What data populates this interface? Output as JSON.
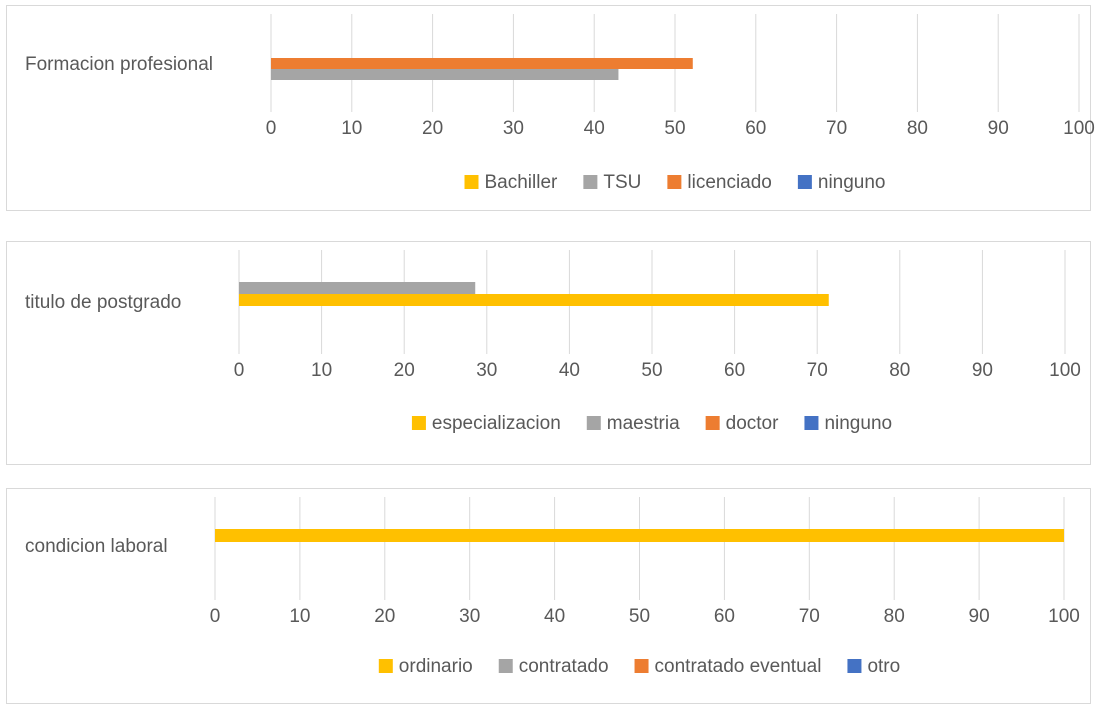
{
  "chart_data": [
    {
      "type": "bar",
      "orientation": "horizontal",
      "categories": [
        "Formacion profesional"
      ],
      "series": [
        {
          "name": "Bachiller",
          "color": "#FFC000",
          "values": [
            0
          ]
        },
        {
          "name": "TSU",
          "color": "#A5A5A5",
          "values": [
            43
          ]
        },
        {
          "name": "licenciado",
          "color": "#ED7D31",
          "values": [
            52.2
          ]
        },
        {
          "name": "ninguno",
          "color": "#4472C4",
          "values": [
            0
          ]
        }
      ],
      "xlim": [
        0,
        100
      ],
      "xticks": [
        0,
        10,
        20,
        30,
        40,
        50,
        60,
        70,
        80,
        90,
        100
      ],
      "grid": true,
      "legend": "bottom"
    },
    {
      "type": "bar",
      "orientation": "horizontal",
      "categories": [
        "titulo de postgrado"
      ],
      "series": [
        {
          "name": "especializacion",
          "color": "#FFC000",
          "values": [
            71.4
          ]
        },
        {
          "name": "maestria",
          "color": "#A5A5A5",
          "values": [
            28.6
          ]
        },
        {
          "name": "doctor",
          "color": "#ED7D31",
          "values": [
            0
          ]
        },
        {
          "name": "ninguno",
          "color": "#4472C4",
          "values": [
            0
          ]
        }
      ],
      "xlim": [
        0,
        100
      ],
      "xticks": [
        0,
        10,
        20,
        30,
        40,
        50,
        60,
        70,
        80,
        90,
        100
      ],
      "grid": true,
      "legend": "bottom"
    },
    {
      "type": "bar",
      "orientation": "horizontal",
      "categories": [
        "condicion laboral"
      ],
      "series": [
        {
          "name": "ordinario",
          "color": "#FFC000",
          "values": [
            100
          ]
        },
        {
          "name": "contratado",
          "color": "#A5A5A5",
          "values": [
            0
          ]
        },
        {
          "name": "contratado eventual",
          "color": "#ED7D31",
          "values": [
            0
          ]
        },
        {
          "name": "otro",
          "color": "#4472C4",
          "values": [
            0
          ]
        }
      ],
      "xlim": [
        0,
        100
      ],
      "xticks": [
        0,
        10,
        20,
        30,
        40,
        50,
        60,
        70,
        80,
        90,
        100
      ],
      "grid": true,
      "legend": "bottom"
    }
  ]
}
